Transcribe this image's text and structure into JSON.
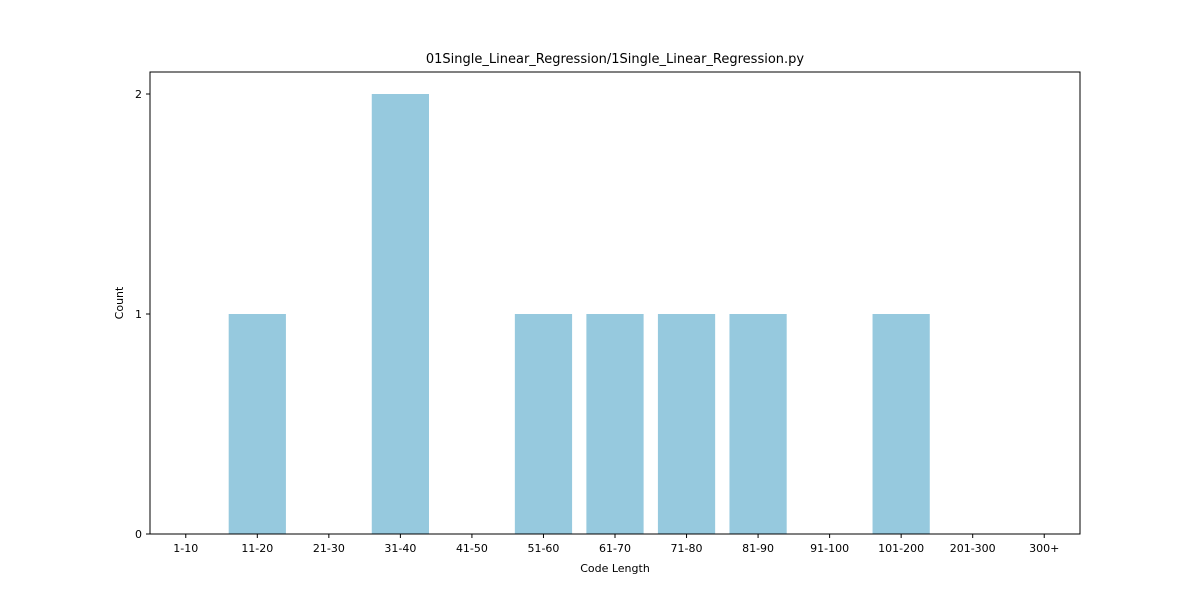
{
  "chart_data": {
    "type": "bar",
    "title": "01Single_Linear_Regression/1Single_Linear_Regression.py",
    "xlabel": "Code Length",
    "ylabel": "Count",
    "categories": [
      "1-10",
      "11-20",
      "21-30",
      "31-40",
      "41-50",
      "51-60",
      "61-70",
      "71-80",
      "81-90",
      "91-100",
      "101-200",
      "201-300",
      "300+"
    ],
    "values": [
      0,
      1,
      0,
      2,
      0,
      1,
      1,
      1,
      1,
      0,
      1,
      0,
      0
    ],
    "ylim": [
      0,
      2.1
    ],
    "yticks": [
      0,
      1,
      2
    ],
    "bar_color": "#96c9de",
    "grid": false,
    "legend": "none"
  }
}
